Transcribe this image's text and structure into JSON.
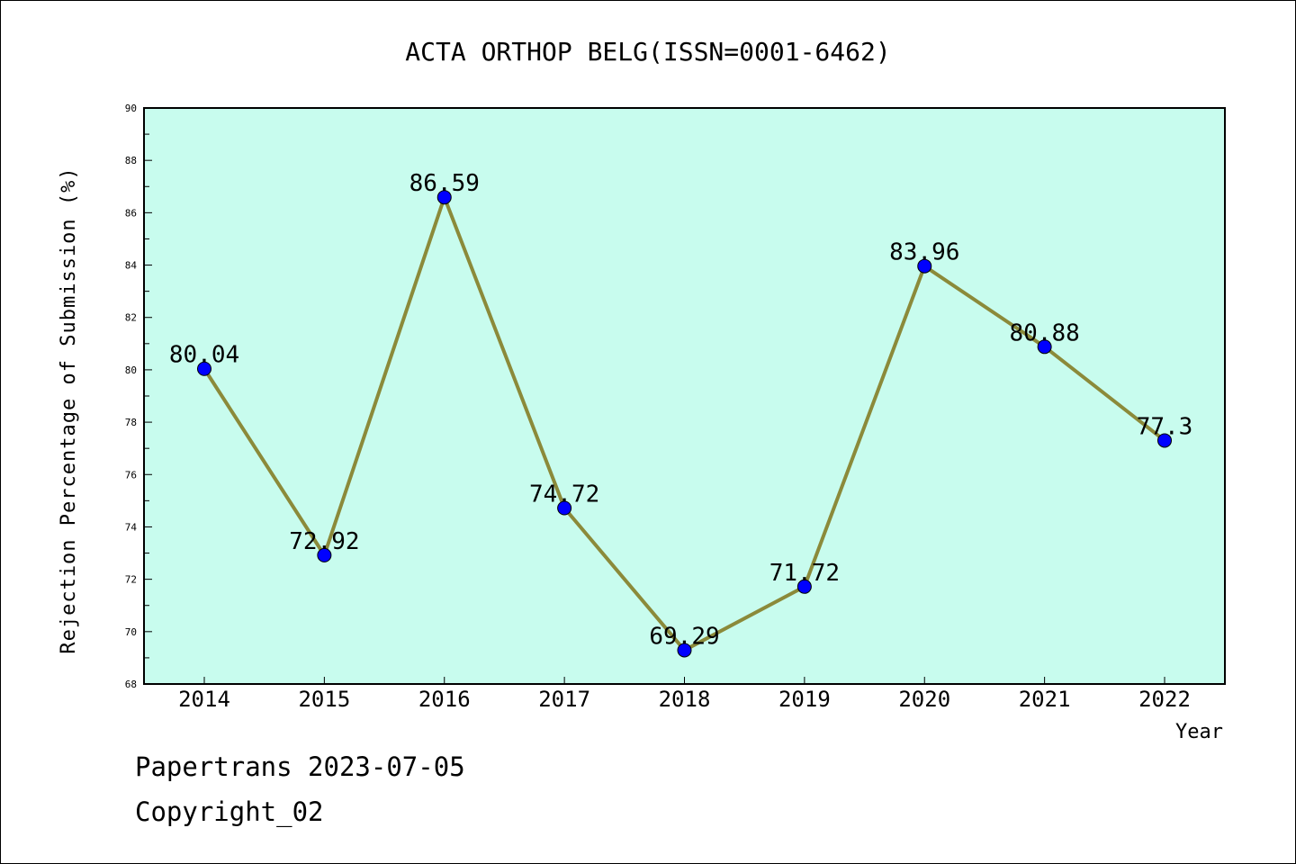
{
  "chart_data": {
    "type": "line",
    "title": "ACTA ORTHOP BELG(ISSN=0001-6462)",
    "xlabel": "Year",
    "ylabel": "Rejection Percentage of Submission (%)",
    "ylim": [
      68,
      90
    ],
    "ytick_step": 2,
    "categories": [
      "2014",
      "2015",
      "2016",
      "2017",
      "2018",
      "2019",
      "2020",
      "2021",
      "2022"
    ],
    "series": [
      {
        "values": [
          80.04,
          72.92,
          86.59,
          74.72,
          69.29,
          71.72,
          83.96,
          80.88,
          77.3
        ],
        "labels": [
          "80.04",
          "72.92",
          "86.59",
          "74.72",
          "69.29",
          "71.72",
          "83.96",
          "80.88",
          "77.3"
        ]
      }
    ],
    "grid": false,
    "colors": {
      "plot_background": "#c8fcee",
      "line": "#8b8a3a",
      "marker": "#0000ff"
    }
  },
  "footer": {
    "line1": "Papertrans 2023-07-05",
    "line2": "Copyright_02"
  }
}
